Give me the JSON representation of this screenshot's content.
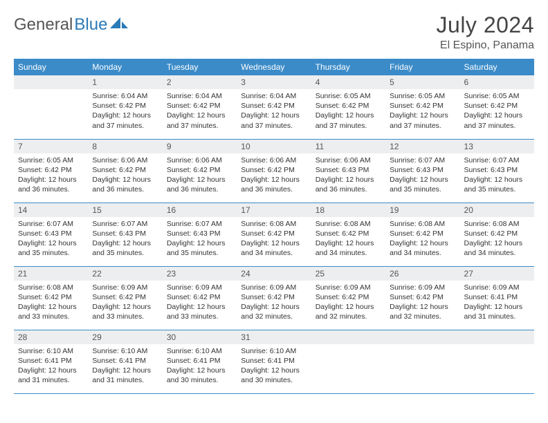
{
  "brand": {
    "part1": "General",
    "part2": "Blue"
  },
  "title": "July 2024",
  "location": "El Espino, Panama",
  "weekdays": [
    "Sunday",
    "Monday",
    "Tuesday",
    "Wednesday",
    "Thursday",
    "Friday",
    "Saturday"
  ],
  "colors": {
    "header_bg": "#3b8bc8",
    "header_text": "#ffffff",
    "daynum_bg": "#eceef0",
    "border": "#3b8bc8",
    "brand_gray": "#555555",
    "brand_blue": "#2a7ab8"
  },
  "start_weekday": 1,
  "days": [
    {
      "n": 1,
      "sunrise": "6:04 AM",
      "sunset": "6:42 PM",
      "daylight": "12 hours and 37 minutes."
    },
    {
      "n": 2,
      "sunrise": "6:04 AM",
      "sunset": "6:42 PM",
      "daylight": "12 hours and 37 minutes."
    },
    {
      "n": 3,
      "sunrise": "6:04 AM",
      "sunset": "6:42 PM",
      "daylight": "12 hours and 37 minutes."
    },
    {
      "n": 4,
      "sunrise": "6:05 AM",
      "sunset": "6:42 PM",
      "daylight": "12 hours and 37 minutes."
    },
    {
      "n": 5,
      "sunrise": "6:05 AM",
      "sunset": "6:42 PM",
      "daylight": "12 hours and 37 minutes."
    },
    {
      "n": 6,
      "sunrise": "6:05 AM",
      "sunset": "6:42 PM",
      "daylight": "12 hours and 37 minutes."
    },
    {
      "n": 7,
      "sunrise": "6:05 AM",
      "sunset": "6:42 PM",
      "daylight": "12 hours and 36 minutes."
    },
    {
      "n": 8,
      "sunrise": "6:06 AM",
      "sunset": "6:42 PM",
      "daylight": "12 hours and 36 minutes."
    },
    {
      "n": 9,
      "sunrise": "6:06 AM",
      "sunset": "6:42 PM",
      "daylight": "12 hours and 36 minutes."
    },
    {
      "n": 10,
      "sunrise": "6:06 AM",
      "sunset": "6:42 PM",
      "daylight": "12 hours and 36 minutes."
    },
    {
      "n": 11,
      "sunrise": "6:06 AM",
      "sunset": "6:43 PM",
      "daylight": "12 hours and 36 minutes."
    },
    {
      "n": 12,
      "sunrise": "6:07 AM",
      "sunset": "6:43 PM",
      "daylight": "12 hours and 35 minutes."
    },
    {
      "n": 13,
      "sunrise": "6:07 AM",
      "sunset": "6:43 PM",
      "daylight": "12 hours and 35 minutes."
    },
    {
      "n": 14,
      "sunrise": "6:07 AM",
      "sunset": "6:43 PM",
      "daylight": "12 hours and 35 minutes."
    },
    {
      "n": 15,
      "sunrise": "6:07 AM",
      "sunset": "6:43 PM",
      "daylight": "12 hours and 35 minutes."
    },
    {
      "n": 16,
      "sunrise": "6:07 AM",
      "sunset": "6:43 PM",
      "daylight": "12 hours and 35 minutes."
    },
    {
      "n": 17,
      "sunrise": "6:08 AM",
      "sunset": "6:42 PM",
      "daylight": "12 hours and 34 minutes."
    },
    {
      "n": 18,
      "sunrise": "6:08 AM",
      "sunset": "6:42 PM",
      "daylight": "12 hours and 34 minutes."
    },
    {
      "n": 19,
      "sunrise": "6:08 AM",
      "sunset": "6:42 PM",
      "daylight": "12 hours and 34 minutes."
    },
    {
      "n": 20,
      "sunrise": "6:08 AM",
      "sunset": "6:42 PM",
      "daylight": "12 hours and 34 minutes."
    },
    {
      "n": 21,
      "sunrise": "6:08 AM",
      "sunset": "6:42 PM",
      "daylight": "12 hours and 33 minutes."
    },
    {
      "n": 22,
      "sunrise": "6:09 AM",
      "sunset": "6:42 PM",
      "daylight": "12 hours and 33 minutes."
    },
    {
      "n": 23,
      "sunrise": "6:09 AM",
      "sunset": "6:42 PM",
      "daylight": "12 hours and 33 minutes."
    },
    {
      "n": 24,
      "sunrise": "6:09 AM",
      "sunset": "6:42 PM",
      "daylight": "12 hours and 32 minutes."
    },
    {
      "n": 25,
      "sunrise": "6:09 AM",
      "sunset": "6:42 PM",
      "daylight": "12 hours and 32 minutes."
    },
    {
      "n": 26,
      "sunrise": "6:09 AM",
      "sunset": "6:42 PM",
      "daylight": "12 hours and 32 minutes."
    },
    {
      "n": 27,
      "sunrise": "6:09 AM",
      "sunset": "6:41 PM",
      "daylight": "12 hours and 31 minutes."
    },
    {
      "n": 28,
      "sunrise": "6:10 AM",
      "sunset": "6:41 PM",
      "daylight": "12 hours and 31 minutes."
    },
    {
      "n": 29,
      "sunrise": "6:10 AM",
      "sunset": "6:41 PM",
      "daylight": "12 hours and 31 minutes."
    },
    {
      "n": 30,
      "sunrise": "6:10 AM",
      "sunset": "6:41 PM",
      "daylight": "12 hours and 30 minutes."
    },
    {
      "n": 31,
      "sunrise": "6:10 AM",
      "sunset": "6:41 PM",
      "daylight": "12 hours and 30 minutes."
    }
  ],
  "labels": {
    "sunrise": "Sunrise:",
    "sunset": "Sunset:",
    "daylight": "Daylight:"
  }
}
